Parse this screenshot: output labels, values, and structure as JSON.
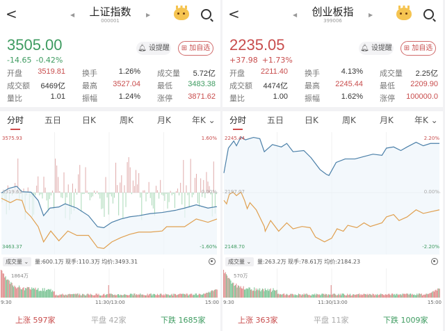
{
  "colors": {
    "up": "#c84c4c",
    "down": "#3e9b60",
    "price_line": "#4a7fa8",
    "avg_line": "#e0a050"
  },
  "panels": [
    {
      "title": "上证指数",
      "code": "000001",
      "price": "3505.00",
      "price_tone": "down",
      "change": "-14.65",
      "change_pct": "-0.42%",
      "alert_btn": "设提醒",
      "watch_btn": "加自选",
      "stats": [
        [
          {
            "label": "开盘",
            "value": "3519.81",
            "tone": "up"
          },
          {
            "label": "换手",
            "value": "1.26%",
            "tone": "flat"
          },
          {
            "label": "成交量",
            "value": "5.72亿",
            "tone": "flat"
          }
        ],
        [
          {
            "label": "成交额",
            "value": "6469亿",
            "tone": "flat"
          },
          {
            "label": "最高",
            "value": "3527.04",
            "tone": "up"
          },
          {
            "label": "最低",
            "value": "3483.38",
            "tone": "down"
          }
        ],
        [
          {
            "label": "量比",
            "value": "1.01",
            "tone": "flat"
          },
          {
            "label": "振幅",
            "value": "1.24%",
            "tone": "flat"
          },
          {
            "label": "涨停",
            "value": "3871.62",
            "tone": "up"
          }
        ]
      ],
      "tabs": [
        "分时",
        "五日",
        "日K",
        "周K",
        "月K",
        "年K ⌄"
      ],
      "chart": {
        "high_label": "3575.93",
        "high_pct": "1.60%",
        "mid_label": "3519.65",
        "mid_pct": "0.00%",
        "low_label": "3463.37",
        "low_pct": "-1.60%",
        "ymin": 3463.37,
        "ymax": 3575.93,
        "prev_close": 3519.65,
        "breadth_bars": true,
        "price": [
          [
            "09:30",
            3519.4
          ],
          [
            "09:38",
            3523.8
          ],
          [
            "09:47",
            3526.0
          ],
          [
            "09:53",
            3520.5
          ],
          [
            "10:03",
            3520.1
          ],
          [
            "10:11",
            3511.8
          ],
          [
            "10:17",
            3496.6
          ],
          [
            "10:24",
            3504.2
          ],
          [
            "10:34",
            3505.3
          ],
          [
            "10:41",
            3508.5
          ],
          [
            "10:54",
            3504.2
          ],
          [
            "11:07",
            3496.6
          ],
          [
            "11:17",
            3485.6
          ],
          [
            "11:24",
            3484.6
          ],
          [
            "13:03",
            3490.0
          ],
          [
            "13:13",
            3493.3
          ],
          [
            "13:23",
            3495.5
          ],
          [
            "13:33",
            3496.6
          ],
          [
            "13:46",
            3498.7
          ],
          [
            "13:59",
            3499.8
          ],
          [
            "14:14",
            3502.0
          ],
          [
            "14:24",
            3504.2
          ],
          [
            "14:37",
            3507.5
          ],
          [
            "14:50",
            3504.2
          ],
          [
            "15:00",
            3505.7
          ]
        ],
        "avg": [
          [
            "09:30",
            3514.0
          ],
          [
            "09:40",
            3509.6
          ],
          [
            "09:47",
            3512.9
          ],
          [
            "09:53",
            3511.8
          ],
          [
            "09:57",
            3500.9
          ],
          [
            "10:03",
            3495.5
          ],
          [
            "10:11",
            3485.6
          ],
          [
            "10:17",
            3470.4
          ],
          [
            "10:25",
            3481.3
          ],
          [
            "10:34",
            3471.5
          ],
          [
            "10:44",
            3481.3
          ],
          [
            "10:54",
            3476.9
          ],
          [
            "11:07",
            3476.9
          ],
          [
            "11:17",
            3464.9
          ],
          [
            "11:24",
            3463.8
          ],
          [
            "13:03",
            3470.4
          ],
          [
            "13:13",
            3474.7
          ],
          [
            "13:23",
            3478.0
          ],
          [
            "13:33",
            3480.2
          ],
          [
            "13:46",
            3480.2
          ],
          [
            "13:59",
            3481.3
          ],
          [
            "14:04",
            3485.6
          ],
          [
            "14:14",
            3485.6
          ],
          [
            "14:24",
            3485.6
          ],
          [
            "14:37",
            3493.3
          ],
          [
            "14:50",
            3490.0
          ],
          [
            "15:00",
            3493.3
          ]
        ]
      },
      "volume": {
        "selector": "成交量",
        "info": "量:600.1万  现手:110.3万  均价:3493.31",
        "max_label": "1864万"
      },
      "time_labels": [
        "9:30",
        "11:30/13:00",
        "15:00"
      ],
      "breadth": {
        "up": "上涨 597家",
        "flat": "平盘 42家",
        "down": "下跌 1685家"
      }
    },
    {
      "title": "创业板指",
      "code": "399006",
      "price": "2235.05",
      "price_tone": "up",
      "change": "+37.98",
      "change_pct": "+1.73%",
      "alert_btn": "设提醒",
      "watch_btn": "加自选",
      "stats": [
        [
          {
            "label": "开盘",
            "value": "2211.40",
            "tone": "up"
          },
          {
            "label": "换手",
            "value": "4.13%",
            "tone": "flat"
          },
          {
            "label": "成交量",
            "value": "2.25亿",
            "tone": "flat"
          }
        ],
        [
          {
            "label": "成交额",
            "value": "4474亿",
            "tone": "flat"
          },
          {
            "label": "最高",
            "value": "2245.44",
            "tone": "up"
          },
          {
            "label": "最低",
            "value": "2209.90",
            "tone": "up"
          }
        ],
        [
          {
            "label": "量比",
            "value": "1.00",
            "tone": "flat"
          },
          {
            "label": "振幅",
            "value": "1.62%",
            "tone": "flat"
          },
          {
            "label": "涨停",
            "value": "100000.0",
            "tone": "up"
          }
        ]
      ],
      "tabs": [
        "分时",
        "五日",
        "日K",
        "周K",
        "月K",
        "年K ⌄"
      ],
      "chart": {
        "high_label": "2245.44",
        "high_pct": "2.20%",
        "mid_label": "2197.07",
        "mid_pct": "0.00%",
        "low_label": "2148.70",
        "low_pct": "-2.20%",
        "ymin": 2148.7,
        "ymax": 2245.44,
        "prev_close": 2197.07,
        "breadth_bars": false,
        "price": [
          [
            "09:30",
            2213.9
          ],
          [
            "09:35",
            2235.3
          ],
          [
            "09:41",
            2241.4
          ],
          [
            "09:44",
            2237.3
          ],
          [
            "09:49",
            2244.9
          ],
          [
            "09:54",
            2242.4
          ],
          [
            "10:03",
            2244.5
          ],
          [
            "10:10",
            2243.4
          ],
          [
            "10:15",
            2232.2
          ],
          [
            "10:24",
            2238.3
          ],
          [
            "10:34",
            2236.3
          ],
          [
            "10:40",
            2239.3
          ],
          [
            "10:47",
            2232.2
          ],
          [
            "10:59",
            2233.2
          ],
          [
            "11:07",
            2227.1
          ],
          [
            "11:17",
            2216.9
          ],
          [
            "11:24",
            2212.8
          ],
          [
            "11:27",
            2211.8
          ],
          [
            "13:05",
            2223.0
          ],
          [
            "13:15",
            2226.0
          ],
          [
            "13:26",
            2226.0
          ],
          [
            "13:36",
            2228.1
          ],
          [
            "13:46",
            2230.1
          ],
          [
            "13:56",
            2229.1
          ],
          [
            "14:01",
            2235.3
          ],
          [
            "14:09",
            2236.3
          ],
          [
            "14:17",
            2233.2
          ],
          [
            "14:24",
            2236.3
          ],
          [
            "14:34",
            2240.3
          ],
          [
            "14:42",
            2237.3
          ],
          [
            "14:50",
            2239.3
          ],
          [
            "15:00",
            2239.3
          ]
        ],
        "avg": [
          [
            "09:30",
            2190.4
          ],
          [
            "09:33",
            2187.4
          ],
          [
            "09:36",
            2195.5
          ],
          [
            "09:40",
            2197.6
          ],
          [
            "09:44",
            2194.5
          ],
          [
            "09:49",
            2197.6
          ],
          [
            "09:53",
            2190.4
          ],
          [
            "09:56",
            2183.3
          ],
          [
            "09:59",
            2188.4
          ],
          [
            "10:06",
            2182.3
          ],
          [
            "10:15",
            2168.0
          ],
          [
            "10:16",
            2163.9
          ],
          [
            "10:22",
            2173.1
          ],
          [
            "10:31",
            2163.9
          ],
          [
            "10:40",
            2171.1
          ],
          [
            "10:47",
            2166.0
          ],
          [
            "10:57",
            2168.0
          ],
          [
            "11:06",
            2167.0
          ],
          [
            "11:12",
            2158.9
          ],
          [
            "11:22",
            2154.8
          ],
          [
            "13:00",
            2157.9
          ],
          [
            "13:06",
            2166.0
          ],
          [
            "13:13",
            2163.9
          ],
          [
            "13:18",
            2169.0
          ],
          [
            "13:28",
            2167.0
          ],
          [
            "13:36",
            2171.1
          ],
          [
            "13:43",
            2168.0
          ],
          [
            "13:56",
            2171.1
          ],
          [
            "14:01",
            2176.2
          ],
          [
            "14:09",
            2178.2
          ],
          [
            "14:15",
            2173.1
          ],
          [
            "14:24",
            2176.2
          ],
          [
            "14:34",
            2182.3
          ],
          [
            "14:42",
            2179.2
          ],
          [
            "15:00",
            2182.3
          ]
        ]
      },
      "volume": {
        "selector": "成交量",
        "info": "量:263.2万  现手:78.61万  均价:2184.23",
        "max_label": "570万"
      },
      "time_labels": [
        "9:30",
        "11:30/13:00",
        "15:00"
      ],
      "breadth": {
        "up": "上涨 363家",
        "flat": "平盘 11家",
        "down": "下跌 1009家"
      }
    }
  ]
}
